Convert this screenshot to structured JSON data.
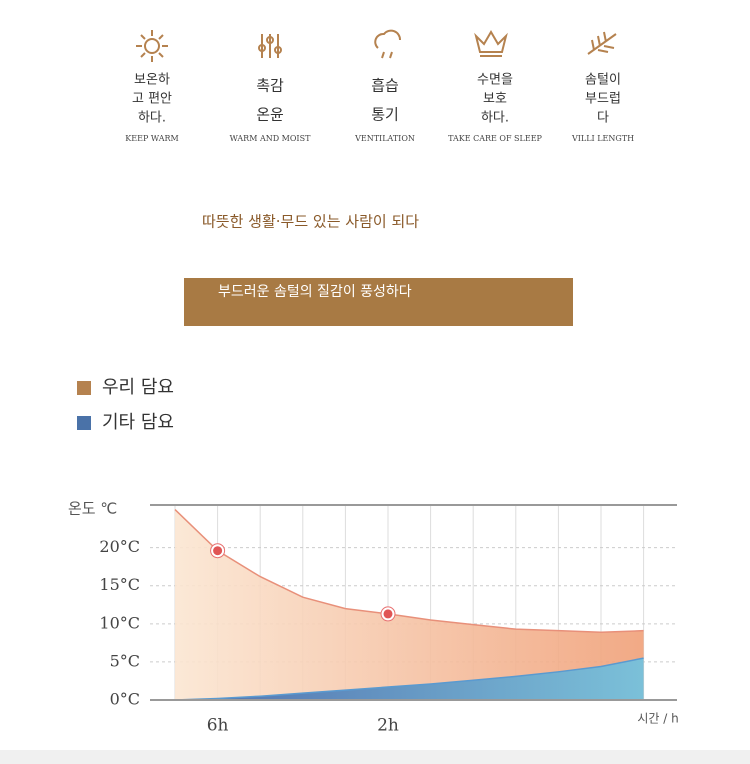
{
  "features": [
    {
      "lines": [
        "보온하",
        "고 편안",
        "하다."
      ],
      "en": "KEEP WARM"
    },
    {
      "lines": [
        "촉감",
        "온윤"
      ],
      "en": "WARM AND MOIST"
    },
    {
      "lines": [
        "흡습",
        "통기"
      ],
      "en": "VENTILATION"
    },
    {
      "lines": [
        "수면을",
        "보호",
        "하다."
      ],
      "en": "TAKE CARE OF SLEEP"
    },
    {
      "lines": [
        "솜털이",
        "부드럽",
        "다"
      ],
      "en": "VILLI LENGTH"
    }
  ],
  "tagline": "따뜻한 생활·무드 있는 사람이 되다",
  "banner": "부드러운 솜털의 질감이 풍성하다",
  "chart_data": {
    "type": "area",
    "y_label": "온도 ℃",
    "x_label": "시간 / h",
    "categories": [
      null,
      "6h",
      null,
      null,
      null,
      "2h",
      null,
      null,
      null,
      null,
      null,
      null
    ],
    "series": [
      {
        "name": "우리 담요",
        "color": "#b5824f",
        "values": [
          25,
          19.6,
          16.2,
          13.5,
          12,
          11.3,
          10.5,
          9.9,
          9.3,
          9.1,
          8.9,
          9.1
        ],
        "highlight_points": [
          1,
          5
        ]
      },
      {
        "name": "기타 담요",
        "color": "#4a72a8",
        "values": [
          0,
          0.2,
          0.5,
          0.9,
          1.3,
          1.7,
          2.1,
          2.6,
          3.1,
          3.7,
          4.4,
          5.5
        ]
      }
    ],
    "ylim": [
      0,
      25.6
    ],
    "yticks": [
      {
        "value": 0,
        "label": "0°C"
      },
      {
        "value": 5,
        "label": "5°C"
      },
      {
        "value": 10,
        "label": "10°C"
      },
      {
        "value": 15,
        "label": "15°C"
      },
      {
        "value": 20,
        "label": "20°C"
      }
    ],
    "grid": true
  }
}
